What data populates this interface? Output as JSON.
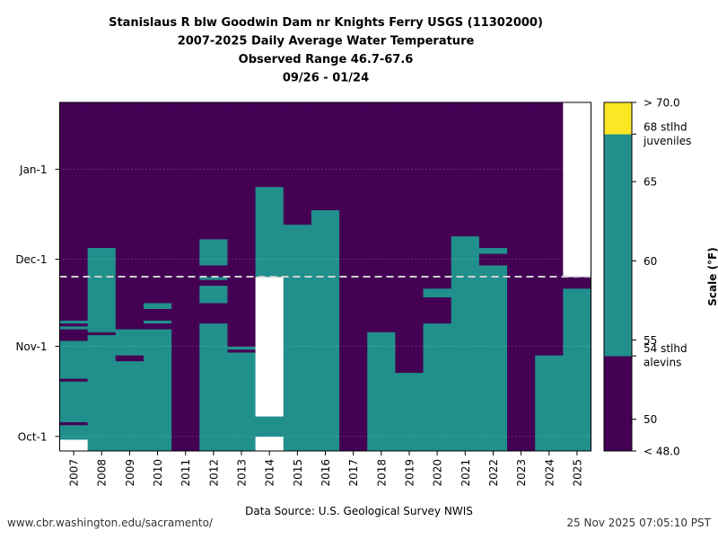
{
  "footer": {
    "source": "Data Source: U.S. Geological Survey NWIS",
    "url": "www.cbr.washington.edu/sacramento/",
    "timestamp": "25 Nov 2025 07:05:10 PST"
  },
  "chart_data": {
    "type": "heatmap",
    "title": [
      "Stanislaus R blw Goodwin Dam nr Knights Ferry USGS (11302000)",
      "2007-2025 Daily Average Water Temperature",
      "Observed Range 46.7-67.6",
      "09/26 - 01/24"
    ],
    "x_categories": [
      "2007",
      "2008",
      "2009",
      "2010",
      "2011",
      "2012",
      "2013",
      "2014",
      "2015",
      "2016",
      "2017",
      "2018",
      "2019",
      "2020",
      "2021",
      "2022",
      "2023",
      "2024",
      "2025"
    ],
    "y_ticks": [
      {
        "label": "Oct-1",
        "day": 5
      },
      {
        "label": "Nov-1",
        "day": 36
      },
      {
        "label": "Dec-1",
        "day": 66
      },
      {
        "label": "Jan-1",
        "day": 97
      }
    ],
    "y_range_days": [
      0,
      120
    ],
    "reference_line_day": 60,
    "colorbar": {
      "label": "Scale (°F)",
      "range": [
        48.0,
        70.0
      ],
      "ticks": [
        {
          "label": "50",
          "value": 50
        },
        {
          "label": "55",
          "value": 55
        },
        {
          "label": "60",
          "value": 60
        },
        {
          "label": "65",
          "value": 65
        }
      ],
      "end_labels": {
        "top": "> 70.0",
        "bottom": "< 48.0"
      },
      "thresholds": [
        {
          "value": 54,
          "lines": [
            "54 stlhd",
            "alevins"
          ]
        },
        {
          "value": 68,
          "lines": [
            "68 stlhd",
            "juveniles"
          ]
        }
      ],
      "bands": [
        {
          "from": 48,
          "to": 54,
          "color": "#440154"
        },
        {
          "from": 54,
          "to": 68,
          "color": "#21908d"
        },
        {
          "from": 68,
          "to": 70,
          "color": "#fde725"
        }
      ]
    },
    "colors": {
      "cold": "#440154",
      "mid": "#21908d",
      "warm": "#fde725",
      "missing": "#ffffff"
    },
    "year_segments": [
      {
        "year": "2007",
        "segments": [
          {
            "from": 0,
            "to": 4,
            "state": "missing"
          },
          {
            "from": 4,
            "to": 9,
            "state": "mid"
          },
          {
            "from": 9,
            "to": 10,
            "state": "cold"
          },
          {
            "from": 10,
            "to": 24,
            "state": "mid"
          },
          {
            "from": 24,
            "to": 25,
            "state": "cold"
          },
          {
            "from": 25,
            "to": 38,
            "state": "mid"
          },
          {
            "from": 38,
            "to": 42,
            "state": "cold"
          },
          {
            "from": 42,
            "to": 43,
            "state": "mid"
          },
          {
            "from": 43,
            "to": 44,
            "state": "cold"
          },
          {
            "from": 44,
            "to": 45,
            "state": "mid"
          },
          {
            "from": 45,
            "to": 120,
            "state": "cold"
          }
        ]
      },
      {
        "year": "2008",
        "segments": [
          {
            "from": 0,
            "to": 40,
            "state": "mid"
          },
          {
            "from": 40,
            "to": 41,
            "state": "cold"
          },
          {
            "from": 41,
            "to": 70,
            "state": "mid"
          },
          {
            "from": 70,
            "to": 120,
            "state": "cold"
          }
        ]
      },
      {
        "year": "2009",
        "segments": [
          {
            "from": 0,
            "to": 31,
            "state": "mid"
          },
          {
            "from": 31,
            "to": 33,
            "state": "cold"
          },
          {
            "from": 33,
            "to": 42,
            "state": "mid"
          },
          {
            "from": 42,
            "to": 120,
            "state": "cold"
          }
        ]
      },
      {
        "year": "2010",
        "segments": [
          {
            "from": 0,
            "to": 42,
            "state": "mid"
          },
          {
            "from": 42,
            "to": 44,
            "state": "cold"
          },
          {
            "from": 44,
            "to": 45,
            "state": "mid"
          },
          {
            "from": 45,
            "to": 49,
            "state": "cold"
          },
          {
            "from": 49,
            "to": 51,
            "state": "mid"
          },
          {
            "from": 51,
            "to": 120,
            "state": "cold"
          }
        ]
      },
      {
        "year": "2011",
        "segments": [
          {
            "from": 0,
            "to": 120,
            "state": "cold"
          }
        ]
      },
      {
        "year": "2012",
        "segments": [
          {
            "from": 0,
            "to": 44,
            "state": "mid"
          },
          {
            "from": 44,
            "to": 51,
            "state": "cold"
          },
          {
            "from": 51,
            "to": 57,
            "state": "mid"
          },
          {
            "from": 57,
            "to": 59,
            "state": "cold"
          },
          {
            "from": 59,
            "to": 60,
            "state": "mid"
          },
          {
            "from": 60,
            "to": 64,
            "state": "cold"
          },
          {
            "from": 64,
            "to": 73,
            "state": "mid"
          },
          {
            "from": 73,
            "to": 120,
            "state": "cold"
          }
        ]
      },
      {
        "year": "2013",
        "segments": [
          {
            "from": 0,
            "to": 34,
            "state": "mid"
          },
          {
            "from": 34,
            "to": 35,
            "state": "cold"
          },
          {
            "from": 35,
            "to": 36,
            "state": "mid"
          },
          {
            "from": 36,
            "to": 120,
            "state": "cold"
          }
        ]
      },
      {
        "year": "2014",
        "segments": [
          {
            "from": 0,
            "to": 5,
            "state": "missing"
          },
          {
            "from": 5,
            "to": 12,
            "state": "mid"
          },
          {
            "from": 12,
            "to": 60,
            "state": "missing"
          },
          {
            "from": 60,
            "to": 91,
            "state": "mid"
          },
          {
            "from": 91,
            "to": 120,
            "state": "cold"
          }
        ]
      },
      {
        "year": "2015",
        "segments": [
          {
            "from": 0,
            "to": 78,
            "state": "mid"
          },
          {
            "from": 78,
            "to": 120,
            "state": "cold"
          }
        ]
      },
      {
        "year": "2016",
        "segments": [
          {
            "from": 0,
            "to": 83,
            "state": "mid"
          },
          {
            "from": 83,
            "to": 120,
            "state": "cold"
          }
        ]
      },
      {
        "year": "2017",
        "segments": [
          {
            "from": 0,
            "to": 120,
            "state": "cold"
          }
        ]
      },
      {
        "year": "2018",
        "segments": [
          {
            "from": 0,
            "to": 41,
            "state": "mid"
          },
          {
            "from": 41,
            "to": 120,
            "state": "cold"
          }
        ]
      },
      {
        "year": "2019",
        "segments": [
          {
            "from": 0,
            "to": 27,
            "state": "mid"
          },
          {
            "from": 27,
            "to": 120,
            "state": "cold"
          }
        ]
      },
      {
        "year": "2020",
        "segments": [
          {
            "from": 0,
            "to": 44,
            "state": "mid"
          },
          {
            "from": 44,
            "to": 53,
            "state": "cold"
          },
          {
            "from": 53,
            "to": 56,
            "state": "mid"
          },
          {
            "from": 56,
            "to": 120,
            "state": "cold"
          }
        ]
      },
      {
        "year": "2021",
        "segments": [
          {
            "from": 0,
            "to": 74,
            "state": "mid"
          },
          {
            "from": 74,
            "to": 120,
            "state": "cold"
          }
        ]
      },
      {
        "year": "2022",
        "segments": [
          {
            "from": 0,
            "to": 64,
            "state": "mid"
          },
          {
            "from": 64,
            "to": 68,
            "state": "cold"
          },
          {
            "from": 68,
            "to": 70,
            "state": "mid"
          },
          {
            "from": 70,
            "to": 120,
            "state": "cold"
          }
        ]
      },
      {
        "year": "2023",
        "segments": [
          {
            "from": 0,
            "to": 120,
            "state": "cold"
          }
        ]
      },
      {
        "year": "2024",
        "segments": [
          {
            "from": 0,
            "to": 33,
            "state": "mid"
          },
          {
            "from": 33,
            "to": 120,
            "state": "cold"
          }
        ]
      },
      {
        "year": "2025",
        "segments": [
          {
            "from": 0,
            "to": 56,
            "state": "mid"
          },
          {
            "from": 56,
            "to": 60,
            "state": "cold"
          },
          {
            "from": 60,
            "to": 120,
            "state": "missing"
          }
        ]
      }
    ]
  }
}
